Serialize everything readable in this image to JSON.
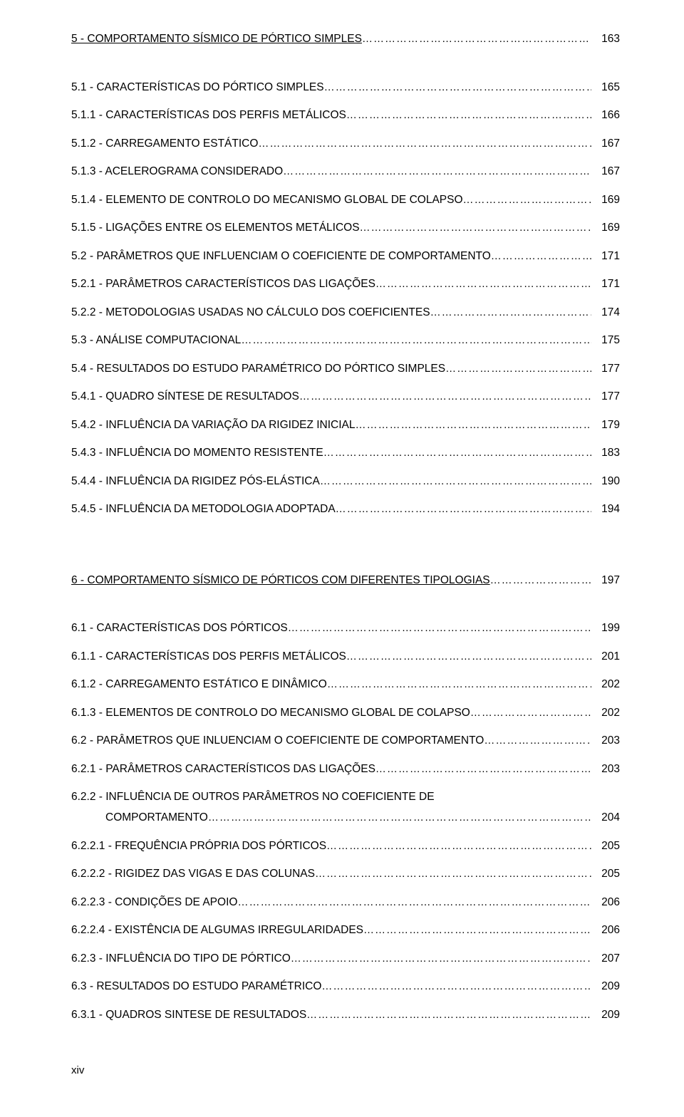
{
  "section5": {
    "title": "5 - COMPORTAMENTO SÍSMICO DE PÓRTICO SIMPLES",
    "page": "163",
    "items": [
      {
        "text": "5.1 - CARACTERÍSTICAS DO PÓRTICO SIMPLES",
        "page": "165"
      },
      {
        "text": "5.1.1 - CARACTERÍSTICAS DOS PERFIS METÁLICOS",
        "page": "166"
      },
      {
        "text": "5.1.2 - CARREGAMENTO ESTÁTICO",
        "page": "167"
      },
      {
        "text": "5.1.3 - ACELEROGRAMA CONSIDERADO",
        "page": "167"
      },
      {
        "text": "5.1.4 - ELEMENTO DE CONTROLO DO MECANISMO GLOBAL DE COLAPSO",
        "page": "169"
      },
      {
        "text": "5.1.5 - LIGAÇÕES ENTRE OS ELEMENTOS METÁLICOS",
        "page": "169"
      },
      {
        "text": "5.2 - PARÂMETROS QUE INFLUENCIAM O COEFICIENTE DE COMPORTAMENTO",
        "page": "171"
      },
      {
        "text": "5.2.1 - PARÂMETROS CARACTERÍSTICOS DAS LIGAÇÕES",
        "page": "171"
      },
      {
        "text": "5.2.2 - METODOLOGIAS USADAS NO CÁLCULO DOS COEFICIENTES",
        "page": "174"
      },
      {
        "text": "5.3 - ANÁLISE COMPUTACIONAL",
        "page": "175"
      },
      {
        "text": "5.4 - RESULTADOS DO ESTUDO PARAMÉTRICO DO PÓRTICO SIMPLES",
        "page": "177"
      },
      {
        "text": "5.4.1 - QUADRO SÍNTESE DE RESULTADOS",
        "page": "177"
      },
      {
        "text": "5.4.2 - INFLUÊNCIA DA VARIAÇÃO DA RIGIDEZ INICIAL",
        "page": "179"
      },
      {
        "text": "5.4.3 - INFLUÊNCIA DO MOMENTO RESISTENTE",
        "page": "183"
      },
      {
        "text": "5.4.4 - INFLUÊNCIA DA RIGIDEZ PÓS-ELÁSTICA",
        "page": "190"
      },
      {
        "text": "5.4.5 - INFLUÊNCIA DA METODOLOGIA ADOPTADA",
        "page": "194"
      }
    ]
  },
  "section6": {
    "title": "6 - COMPORTAMENTO SÍSMICO DE PÓRTICOS COM DIFERENTES TIPOLOGIAS",
    "page": "197",
    "items": [
      {
        "text": "6.1 - CARACTERÍSTICAS DOS PÓRTICOS",
        "page": "199"
      },
      {
        "text": "6.1.1 - CARACTERÍSTICAS DOS PERFIS METÁLICOS",
        "page": "201"
      },
      {
        "text": "6.1.2 - CARREGAMENTO ESTÁTICO E DINÂMICO",
        "page": "202"
      },
      {
        "text": "6.1.3 - ELEMENTOS DE CONTROLO DO MECANISMO GLOBAL DE COLAPSO",
        "page": "202"
      },
      {
        "text": "6.2 - PARÂMETROS QUE INLUENCIAM O COEFICIENTE DE COMPORTAMENTO",
        "page": "203"
      },
      {
        "text": "6.2.1 - PARÂMETROS CARACTERÍSTICOS DAS LIGAÇÕES",
        "page": "203"
      }
    ],
    "wrap": {
      "line1": "6.2.2 - INFLUÊNCIA DE OUTROS PARÂMETROS NO COEFICIENTE DE",
      "line2": "COMPORTAMENTO",
      "page": "204"
    },
    "items2": [
      {
        "text": "6.2.2.1 - FREQUÊNCIA PRÓPRIA DOS PÓRTICOS",
        "page": "205"
      },
      {
        "text": "6.2.2.2 - RIGIDEZ DAS VIGAS E DAS COLUNAS",
        "page": "205"
      },
      {
        "text": "6.2.2.3 - CONDIÇÕES DE APOIO",
        "page": "206"
      },
      {
        "text": "6.2.2.4 - EXISTÊNCIA DE ALGUMAS IRREGULARIDADES",
        "page": "206"
      },
      {
        "text": "6.2.3 - INFLUÊNCIA DO TIPO DE PÓRTICO",
        "page": "207"
      },
      {
        "text": "6.3 - RESULTADOS DO ESTUDO PARAMÉTRICO",
        "page": "209"
      },
      {
        "text": "6.3.1 - QUADROS SINTESE DE RESULTADOS",
        "page": "209"
      }
    ]
  },
  "footer": "xiv"
}
